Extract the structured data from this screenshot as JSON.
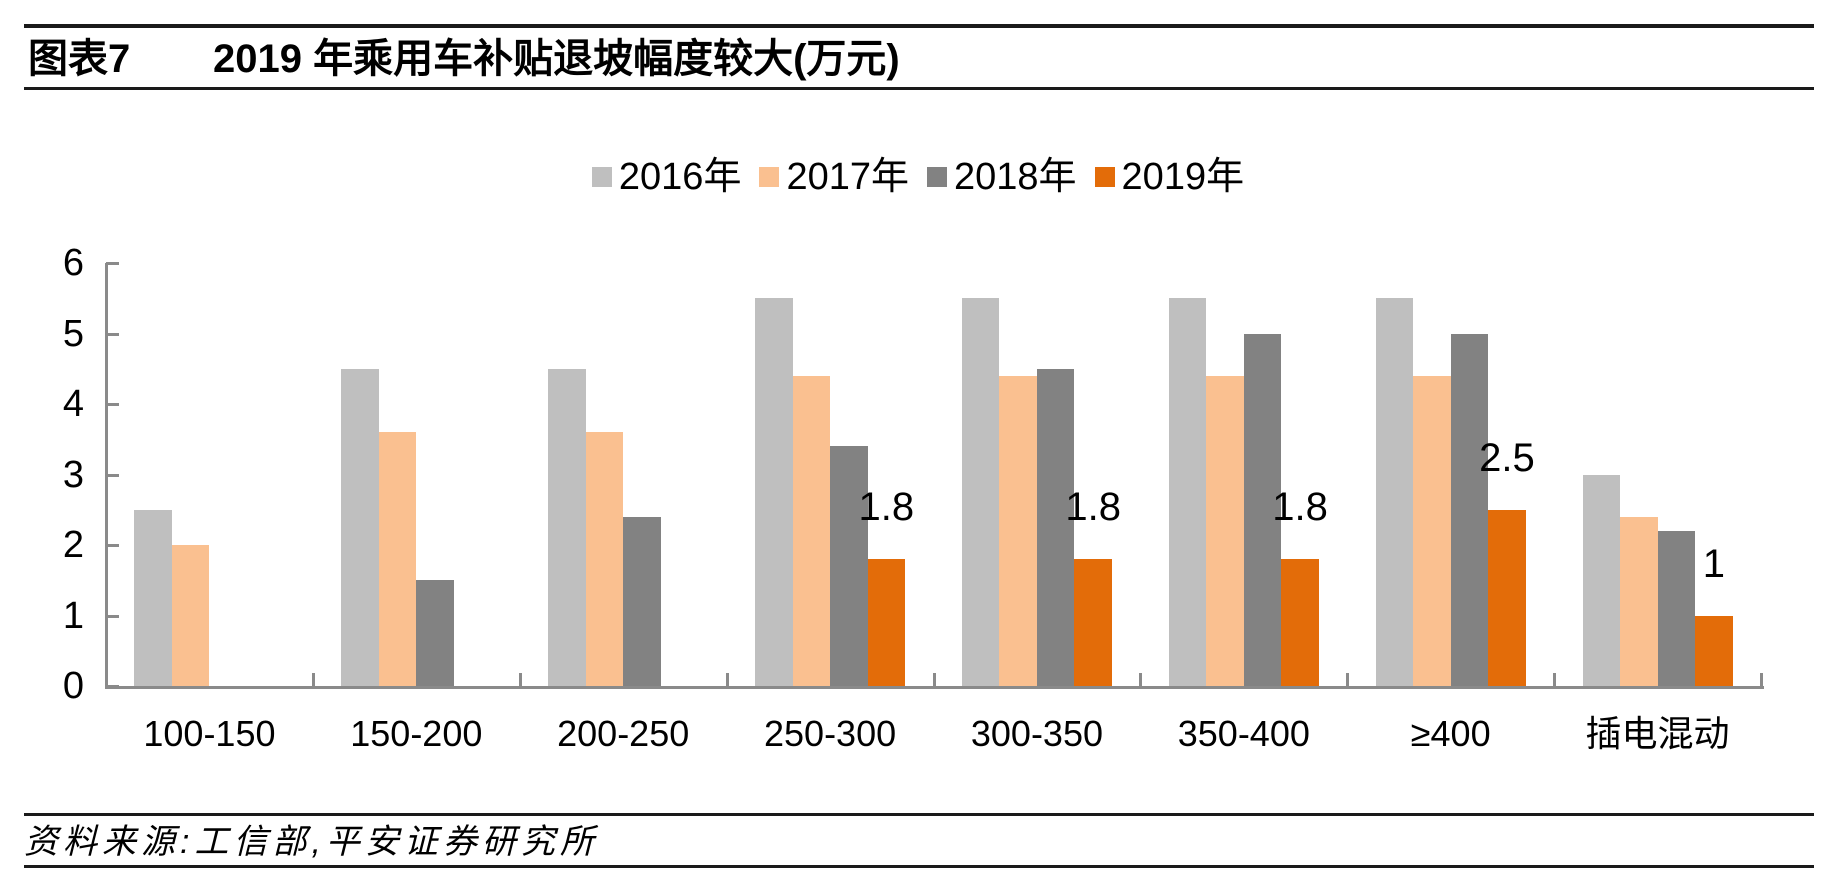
{
  "header": {
    "chart_label": "图表7",
    "title": "2019 年乘用车补贴退坡幅度较大(万元)"
  },
  "footer": {
    "source": "资料来源:工信部,平安证券研究所"
  },
  "chart_data": {
    "type": "bar",
    "title": "2019 年乘用车补贴退坡幅度较大(万元)",
    "xlabel": "",
    "ylabel": "",
    "ylim": [
      0,
      6
    ],
    "yticks": [
      0,
      1,
      2,
      3,
      4,
      5,
      6
    ],
    "grid": false,
    "legend_position": "top",
    "axis_color": "#8a8a8a",
    "text_color": "#000000",
    "categories": [
      "100-150",
      "150-200",
      "200-250",
      "250-300",
      "300-350",
      "350-400",
      "≥400",
      "插电混动"
    ],
    "series": [
      {
        "name": "2016年",
        "color": "#bfbfbf",
        "values": [
          2.5,
          4.5,
          4.5,
          5.5,
          5.5,
          5.5,
          5.5,
          3.0
        ],
        "data_labels": [
          "",
          "",
          "",
          "",
          "",
          "",
          "",
          ""
        ]
      },
      {
        "name": "2017年",
        "color": "#fac090",
        "values": [
          2.0,
          3.6,
          3.6,
          4.4,
          4.4,
          4.4,
          4.4,
          2.4
        ],
        "data_labels": [
          "",
          "",
          "",
          "",
          "",
          "",
          "",
          ""
        ]
      },
      {
        "name": "2018年",
        "color": "#828282",
        "values": [
          0,
          1.5,
          2.4,
          3.4,
          4.5,
          5.0,
          5.0,
          2.2
        ],
        "data_labels": [
          "",
          "",
          "",
          "",
          "",
          "",
          "",
          ""
        ]
      },
      {
        "name": "2019年",
        "color": "#e36c09",
        "values": [
          0,
          0,
          0,
          1.8,
          1.8,
          1.8,
          2.5,
          1.0
        ],
        "data_labels": [
          "",
          "",
          "",
          "1.8",
          "1.8",
          "1.8",
          "2.5",
          "1"
        ]
      }
    ]
  }
}
